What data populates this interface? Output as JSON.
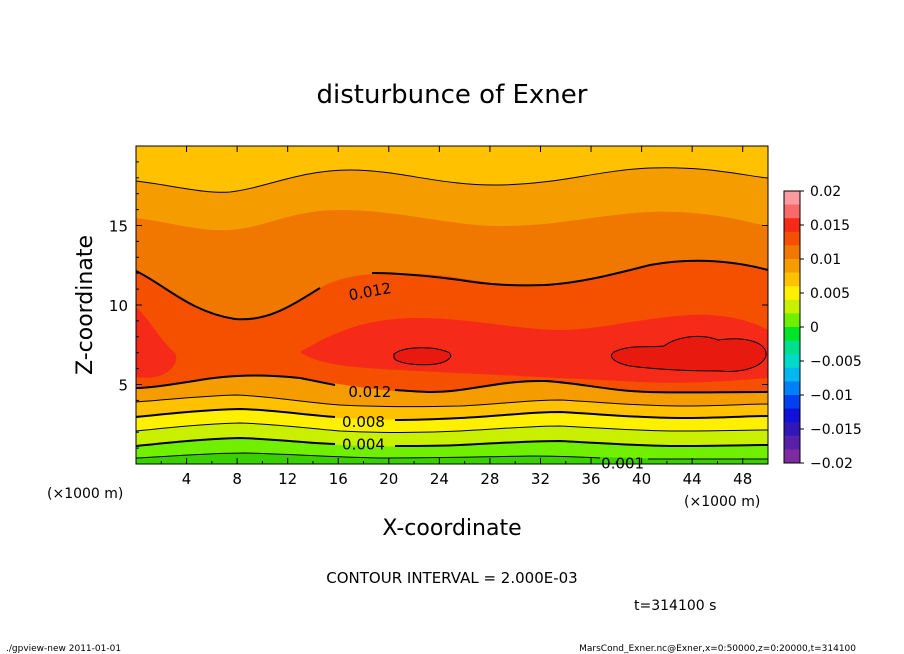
{
  "chart_data": {
    "type": "heatmap",
    "title": "disturbunce of Exner",
    "xlabel": "X-coordinate",
    "ylabel": "Z-coordinate",
    "x_unit_left": "(×1000 m)",
    "x_unit_right": "(×1000 m)",
    "xlim": [
      0,
      50
    ],
    "ylim": [
      0,
      20
    ],
    "x_ticks": [
      4,
      8,
      12,
      16,
      20,
      24,
      28,
      32,
      36,
      40,
      44,
      48
    ],
    "y_ticks": [
      5,
      10,
      15
    ],
    "contour_interval_text": "CONTOUR INTERVAL = 2.000E-03",
    "time_text": "t=314100 s",
    "contour_labels": [
      {
        "text": "0.012",
        "x": 18.5,
        "z": 10.9
      },
      {
        "text": "0.012",
        "x": 18.5,
        "z": 4.6
      },
      {
        "text": "0.008",
        "x": 18.0,
        "z": 2.7
      },
      {
        "text": "0.004",
        "x": 18.0,
        "z": 1.3
      },
      {
        "text": "0.001",
        "x": 38.5,
        "z": 0.1
      }
    ],
    "colorbar": {
      "labels": [
        "0.02",
        "0.015",
        "0.01",
        "0.005",
        "0",
        "−0.005",
        "−0.01",
        "−0.015",
        "−0.02"
      ],
      "levels": [
        0.02,
        0.015,
        0.01,
        0.005,
        0,
        -0.005,
        -0.01,
        -0.015,
        -0.02
      ],
      "colors": [
        "#fb9aa0",
        "#f86a6a",
        "#f52a18",
        "#f55000",
        "#f07800",
        "#f59c00",
        "#ffc100",
        "#fff000",
        "#c8f000",
        "#70f000",
        "#00e428",
        "#00e08c",
        "#00d8c8",
        "#00b8f0",
        "#0080f8",
        "#0040f0",
        "#1010d8",
        "#3018b8",
        "#5820a8",
        "#7c2ca0"
      ]
    },
    "field_bands": [
      {
        "from": 0.0,
        "to": 0.002,
        "color": "#3ad000"
      },
      {
        "from": 0.002,
        "to": 0.004,
        "color": "#70f000"
      },
      {
        "from": 0.004,
        "to": 0.006,
        "color": "#c8f000"
      },
      {
        "from": 0.006,
        "to": 0.008,
        "color": "#fff000"
      },
      {
        "from": 0.008,
        "to": 0.01,
        "color": "#ffc100"
      },
      {
        "from": 0.01,
        "to": 0.012,
        "color": "#f59c00"
      },
      {
        "from": 0.012,
        "to": 0.014,
        "color": "#f07800"
      },
      {
        "from": 0.014,
        "to": 0.016,
        "color": "#f55000"
      },
      {
        "from": 0.016,
        "to": 0.018,
        "color": "#f52a18"
      }
    ]
  },
  "footer": {
    "left": "./gpview-new  2011-01-01",
    "right": "MarsCond_Exner.nc@Exner,x=0:50000,z=0:20000,t=314100"
  }
}
